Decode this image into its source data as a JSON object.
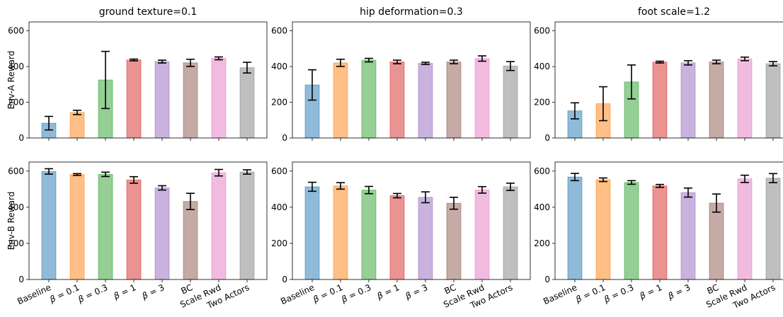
{
  "chart_data": {
    "type": "bar",
    "categories": [
      "Baseline",
      "β = 0.1",
      "β = 0.3",
      "β = 1",
      "β = 3",
      "BC",
      "Scale Rwd",
      "Two Actors"
    ],
    "category_colors": [
      "#1f77b4",
      "#ff7f0e",
      "#2ca02c",
      "#d62728",
      "#9467bd",
      "#8c564b",
      "#e377c2",
      "#7f7f7f"
    ],
    "bar_alpha": 0.5,
    "ylim": [
      0,
      650
    ],
    "yticks": [
      0,
      200,
      400,
      600
    ],
    "row_labels": [
      "Env-A Reward",
      "Env-B Reward"
    ],
    "column_titles": [
      "ground texture=0.1",
      "hip deformation=0.3",
      "foot scale=1.2"
    ],
    "panels": [
      {
        "row": 0,
        "col": 0,
        "values": [
          83,
          143,
          325,
          437,
          428,
          421,
          446,
          394
        ],
        "errors": [
          38,
          12,
          160,
          5,
          8,
          20,
          8,
          30
        ]
      },
      {
        "row": 0,
        "col": 1,
        "values": [
          297,
          421,
          436,
          426,
          418,
          426,
          445,
          403
        ],
        "errors": [
          85,
          20,
          10,
          10,
          6,
          10,
          15,
          25
        ]
      },
      {
        "row": 0,
        "col": 2,
        "values": [
          152,
          192,
          314,
          425,
          421,
          426,
          443,
          416
        ],
        "errors": [
          45,
          95,
          95,
          5,
          12,
          10,
          10,
          12
        ]
      },
      {
        "row": 1,
        "col": 0,
        "values": [
          598,
          581,
          582,
          551,
          507,
          432,
          591,
          595
        ],
        "errors": [
          15,
          5,
          12,
          18,
          12,
          45,
          18,
          12
        ]
      },
      {
        "row": 1,
        "col": 1,
        "values": [
          513,
          518,
          495,
          464,
          455,
          422,
          496,
          513
        ],
        "errors": [
          25,
          18,
          20,
          12,
          30,
          33,
          18,
          20
        ]
      },
      {
        "row": 1,
        "col": 2,
        "values": [
          567,
          552,
          537,
          518,
          481,
          423,
          557,
          561
        ],
        "errors": [
          20,
          10,
          10,
          8,
          25,
          50,
          20,
          25
        ]
      }
    ]
  }
}
